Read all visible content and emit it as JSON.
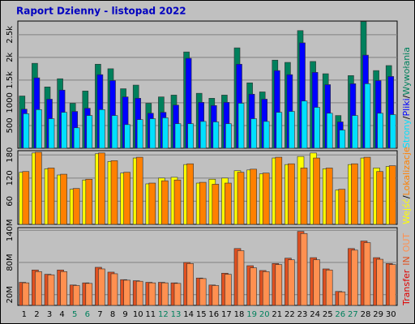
{
  "title": "Raport Dzienny -  listopad 2022",
  "legend_separator": "/",
  "chart_data": [
    {
      "type": "bar",
      "legend_reversed": true,
      "ylim": [
        0,
        2800
      ],
      "yticks": [
        500,
        1000,
        {
          "value": 1500,
          "label": "1.5k"
        },
        {
          "value": 2000,
          "label": "2k"
        },
        {
          "value": 2500,
          "label": "2.5k"
        }
      ],
      "grid": true,
      "series": [
        {
          "name": "Wywołania",
          "color": "#00805c",
          "values": [
            1150,
            1870,
            1350,
            1530,
            990,
            1260,
            1850,
            1750,
            1310,
            1390,
            990,
            1130,
            1170,
            2120,
            1210,
            1100,
            1170,
            2210,
            1440,
            1240,
            1940,
            1890,
            2590,
            1910,
            1640,
            720,
            1600,
            2790,
            1710,
            1820
          ]
        },
        {
          "name": "Pliki",
          "color": "#0000ff",
          "values": [
            860,
            1550,
            1080,
            1280,
            810,
            880,
            1620,
            1490,
            1130,
            1100,
            770,
            790,
            950,
            1980,
            1010,
            940,
            1010,
            1850,
            1190,
            1080,
            1710,
            1620,
            2320,
            1670,
            1400,
            580,
            1420,
            2050,
            1490,
            1580
          ]
        },
        {
          "name": "Strony",
          "color": "#00e0ff",
          "values": [
            760,
            850,
            650,
            790,
            450,
            720,
            850,
            720,
            520,
            630,
            650,
            670,
            540,
            540,
            590,
            580,
            540,
            990,
            650,
            590,
            790,
            810,
            1040,
            900,
            770,
            400,
            720,
            1420,
            770,
            740
          ]
        }
      ]
    },
    {
      "type": "bar",
      "ylim": [
        0,
        191
      ],
      "yticks": [
        60,
        120,
        180
      ],
      "grid": true,
      "series": [
        {
          "name": "Wejść",
          "color": "#ffff00",
          "values": [
            135,
            185,
            144,
            128,
            91,
            115,
            183,
            163,
            133,
            172,
            105,
            120,
            122,
            155,
            107,
            117,
            120,
            139,
            141,
            131,
            172,
            155,
            176,
            185,
            144,
            89,
            155,
            172,
            146,
            150
          ]
        },
        {
          "name": "Lokalizacje",
          "color": "#ff8000",
          "values": [
            137,
            187,
            146,
            130,
            93,
            117,
            185,
            165,
            135,
            174,
            107,
            113,
            115,
            157,
            109,
            104,
            107,
            135,
            143,
            133,
            174,
            157,
            146,
            172,
            146,
            91,
            157,
            174,
            137,
            152
          ]
        }
      ]
    },
    {
      "type": "bar",
      "label": "Transfer",
      "ylim": [
        0,
        145
      ],
      "yticks": [
        {
          "value": 20,
          "label": "20M"
        },
        {
          "value": 80,
          "label": "80M"
        },
        {
          "value": 140,
          "label": "140M"
        }
      ],
      "grid": true,
      "categories": [
        "1",
        "2",
        "3",
        "4",
        "5",
        "6",
        "7",
        "8",
        "9",
        "10",
        "11",
        "12",
        "13",
        "14",
        "15",
        "16",
        "17",
        "18",
        "19",
        "20",
        "21",
        "22",
        "23",
        "24",
        "25",
        "26",
        "27",
        "28",
        "29",
        "30"
      ],
      "category_colors": [
        "#000000",
        "#000000",
        "#000000",
        "#000000",
        "#00805c",
        "#00805c",
        "#000000",
        "#000000",
        "#000000",
        "#000000",
        "#000000",
        "#00805c",
        "#00805c",
        "#000000",
        "#000000",
        "#000000",
        "#000000",
        "#000000",
        "#00805c",
        "#00805c",
        "#000000",
        "#000000",
        "#000000",
        "#000000",
        "#000000",
        "#00805c",
        "#00805c",
        "#000000",
        "#000000",
        "#000000"
      ],
      "series": [
        {
          "name": "IN",
          "color": "#e05020",
          "values": [
            43,
            66,
            58,
            66,
            38,
            42,
            71,
            62,
            48,
            46,
            43,
            43,
            42,
            80,
            51,
            38,
            60,
            106,
            74,
            65,
            78,
            88,
            138,
            89,
            68,
            26,
            106,
            120,
            89,
            78
          ]
        },
        {
          "name": "OUT",
          "color": "#ff9050",
          "values": [
            42,
            63,
            57,
            63,
            37,
            41,
            68,
            59,
            47,
            45,
            42,
            42,
            41,
            78,
            50,
            37,
            58,
            102,
            70,
            63,
            76,
            85,
            134,
            85,
            66,
            25,
            103,
            117,
            86,
            76
          ]
        }
      ]
    }
  ]
}
